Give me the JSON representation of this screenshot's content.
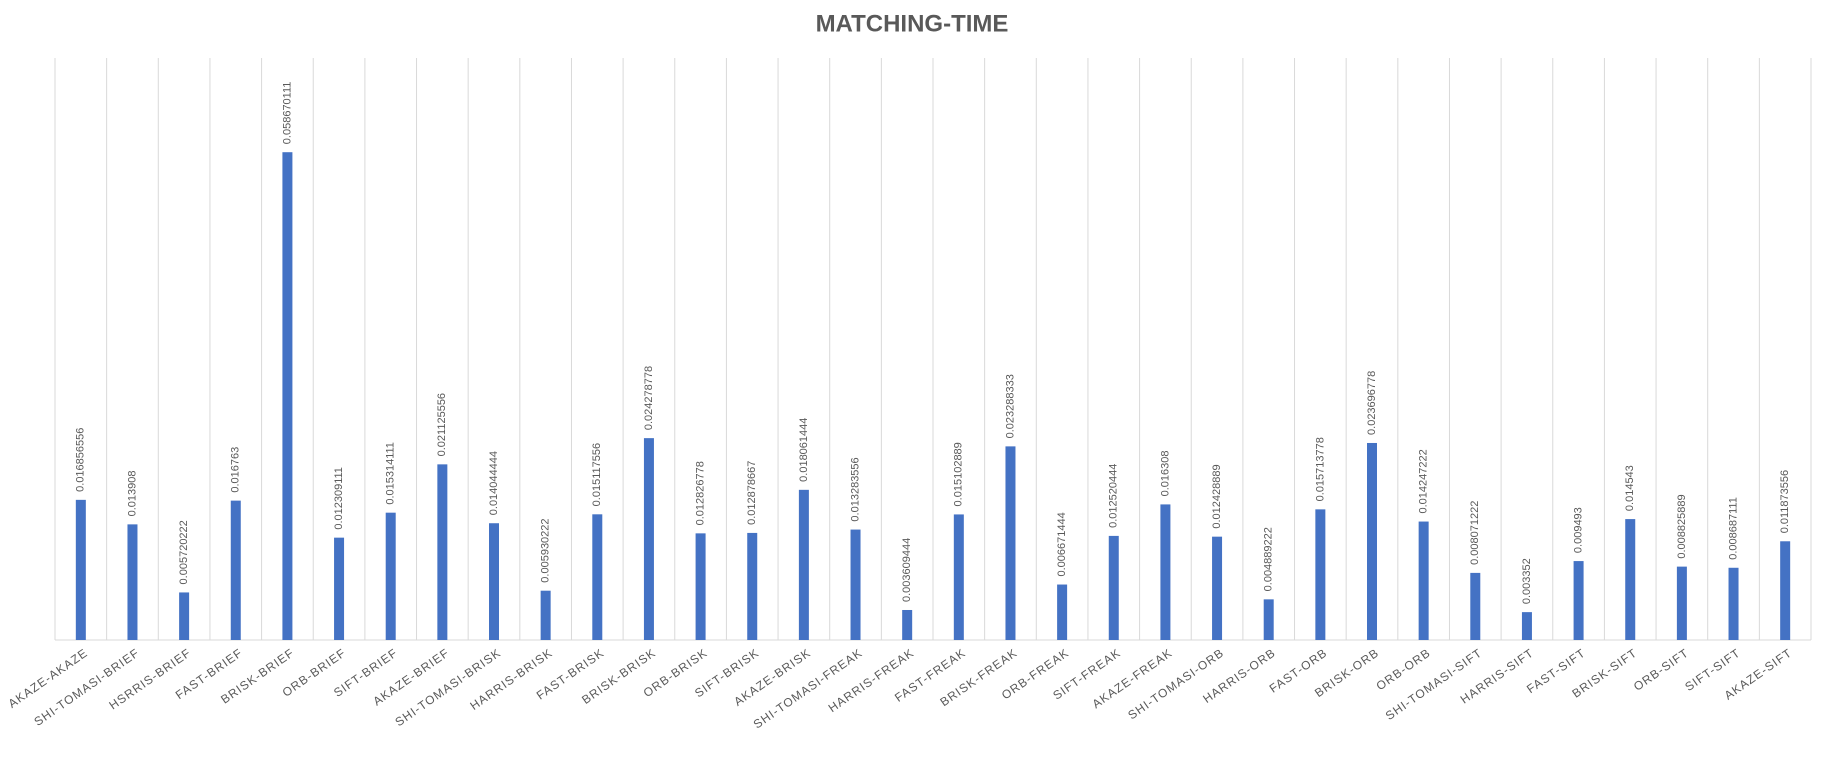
{
  "chart_data": {
    "type": "bar",
    "title": "MATCHING-TIME",
    "categories": [
      "AKAZE-AKAZE",
      "SHI-TOMASI-BRIEF",
      "HSRRIS-BRIEF",
      "FAST-BRIEF",
      "BRISK-BRIEF",
      "ORB-BRIEF",
      "SIFT-BRIEF",
      "AKAZE-BRIEF",
      "SHI-TOMASI-BRISK",
      "HARRIS-BRISK",
      "FAST-BRISK",
      "BRISK-BRISK",
      "ORB-BRISK",
      "SIFT-BRISK",
      "AKAZE-BRISK",
      "SHI-TOMASI-FREAK",
      "HARRIS-FREAK",
      "FAST-FREAK",
      "BRISK-FREAK",
      "ORB-FREAK",
      "SIFT-FREAK",
      "AKAZE-FREAK",
      "SHI-TOMASI-ORB",
      "HARRIS-ORB",
      "FAST-ORB",
      "BRISK-ORB",
      "ORB-ORB",
      "SHI-TOMASI-SIFT",
      "HARRIS-SIFT",
      "FAST-SIFT",
      "BRISK-SIFT",
      "ORB-SIFT",
      "SIFT-SIFT",
      "AKAZE-SIFT"
    ],
    "values": [
      0.016856556,
      0.013908,
      0.005720222,
      0.016763,
      0.058670111,
      0.012309111,
      0.015314111,
      0.021125556,
      0.014044444,
      0.005930222,
      0.015117556,
      0.024278778,
      0.012826778,
      0.012878667,
      0.018061444,
      0.013283556,
      0.003609444,
      0.015102889,
      0.023288333,
      0.006671444,
      0.012520444,
      0.016308,
      0.012428889,
      0.004889222,
      0.015713778,
      0.023696778,
      0.014247222,
      0.008071222,
      0.003352,
      0.009493,
      0.014543,
      0.008825889,
      0.008687111,
      0.011873556
    ],
    "color": "#4472c4",
    "ylim": [
      0,
      0.07
    ],
    "grid": true
  }
}
